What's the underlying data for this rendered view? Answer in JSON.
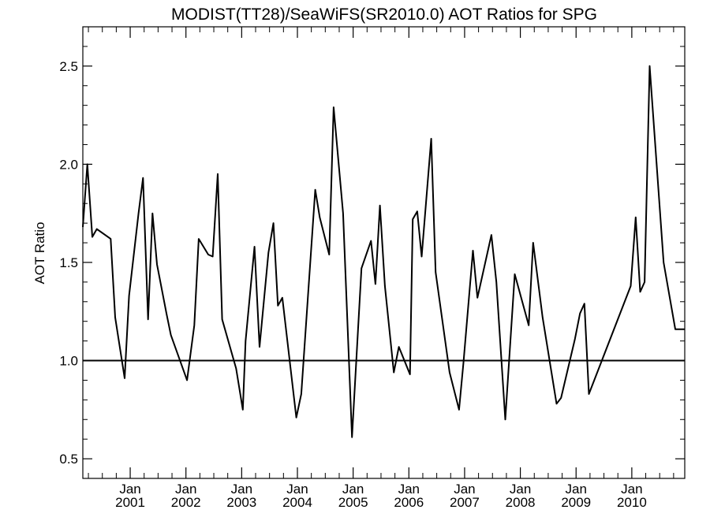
{
  "chart_data": {
    "type": "line",
    "title": "MODIST(TT28)/SeaWiFS(SR2010.0)  AOT Ratios for SPG",
    "ylabel": "AOT Ratio",
    "xlabel": "",
    "xlim": [
      2000.15,
      2010.95
    ],
    "ylim": [
      0.4,
      2.7
    ],
    "y_ticks": [
      0.5,
      1.0,
      1.5,
      2.0,
      2.5
    ],
    "y_tick_labels": [
      "0.5",
      "1.0",
      "1.5",
      "2.0",
      "2.5"
    ],
    "x_ticks": [
      2001,
      2002,
      2003,
      2004,
      2005,
      2006,
      2007,
      2008,
      2009,
      2010
    ],
    "x_tick_labels_top": [
      "Jan",
      "Jan",
      "Jan",
      "Jan",
      "Jan",
      "Jan",
      "Jan",
      "Jan",
      "Jan",
      "Jan"
    ],
    "x_tick_labels_bottom": [
      "2001",
      "2002",
      "2003",
      "2004",
      "2005",
      "2006",
      "2007",
      "2008",
      "2009",
      "2010"
    ],
    "reference_line": 1.0,
    "series": [
      {
        "x": [
          2000.15,
          2000.23,
          2000.32,
          2000.4,
          2000.65,
          2000.73,
          2000.9,
          2000.98,
          2001.15,
          2001.23,
          2001.32,
          2001.4,
          2001.48,
          2001.65,
          2001.73,
          2002.02,
          2002.15,
          2002.23,
          2002.4,
          2002.48,
          2002.57,
          2002.65,
          2002.9,
          2003.02,
          2003.07,
          2003.23,
          2003.32,
          2003.48,
          2003.57,
          2003.65,
          2003.73,
          2003.98,
          2004.07,
          2004.32,
          2004.4,
          2004.57,
          2004.65,
          2004.82,
          2004.98,
          2005.15,
          2005.32,
          2005.4,
          2005.48,
          2005.57,
          2005.73,
          2005.82,
          2006.02,
          2006.07,
          2006.15,
          2006.23,
          2006.4,
          2006.48,
          2006.73,
          2006.9,
          2006.98,
          2007.15,
          2007.23,
          2007.48,
          2007.57,
          2007.73,
          2007.9,
          2008.15,
          2008.23,
          2008.4,
          2008.65,
          2008.73,
          2008.98,
          2009.07,
          2009.15,
          2009.23,
          2009.98,
          2010.07,
          2010.15,
          2010.23,
          2010.32,
          2010.57,
          2010.78,
          2010.95
        ],
        "values": [
          1.68,
          2.0,
          1.63,
          1.67,
          1.62,
          1.22,
          0.91,
          1.33,
          1.75,
          1.93,
          1.21,
          1.75,
          1.49,
          1.24,
          1.13,
          0.9,
          1.18,
          1.62,
          1.54,
          1.53,
          1.95,
          1.21,
          0.96,
          0.75,
          1.1,
          1.58,
          1.07,
          1.55,
          1.7,
          1.28,
          1.32,
          0.71,
          0.83,
          1.87,
          1.73,
          1.54,
          2.29,
          1.75,
          0.61,
          1.47,
          1.61,
          1.39,
          1.79,
          1.38,
          0.94,
          1.07,
          0.93,
          1.72,
          1.76,
          1.53,
          2.13,
          1.45,
          0.94,
          0.75,
          0.99,
          1.56,
          1.32,
          1.64,
          1.4,
          0.7,
          1.44,
          1.18,
          1.6,
          1.22,
          0.78,
          0.81,
          1.11,
          1.24,
          1.29,
          0.83,
          1.38,
          1.73,
          1.35,
          1.4,
          2.5,
          1.5,
          1.16,
          1.16
        ]
      }
    ]
  }
}
